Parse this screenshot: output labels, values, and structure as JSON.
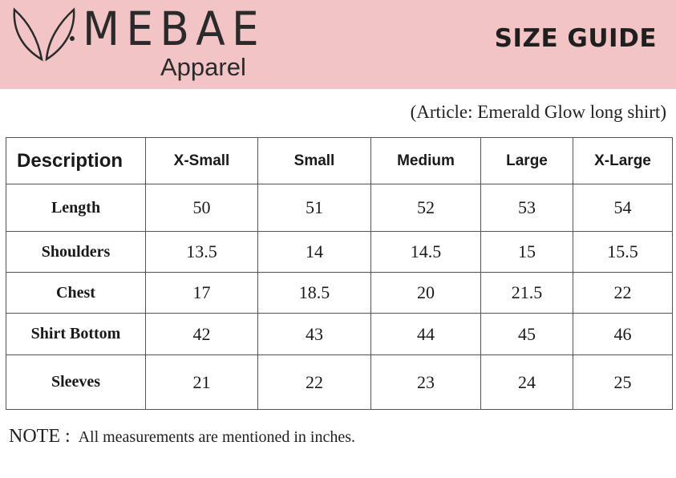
{
  "header": {
    "brand_name": "MEBAE",
    "brand_sub": "Apparel",
    "title": "SIZE GUIDE",
    "colors": {
      "banner": "#f2c4c6",
      "text": "#2a2a2a"
    }
  },
  "article": "(Article: Emerald Glow long shirt)",
  "table": {
    "columns": [
      "Description",
      "X-Small",
      "Small",
      "Medium",
      "Large",
      "X-Large"
    ],
    "rows": [
      {
        "label": "Length",
        "values": [
          "50",
          "51",
          "52",
          "53",
          "54"
        ]
      },
      {
        "label": "Shoulders",
        "values": [
          "13.5",
          "14",
          "14.5",
          "15",
          "15.5"
        ]
      },
      {
        "label": "Chest",
        "values": [
          "17",
          "18.5",
          "20",
          "21.5",
          "22"
        ]
      },
      {
        "label": "Shirt Bottom",
        "values": [
          "42",
          "43",
          "44",
          "45",
          "46"
        ]
      },
      {
        "label": "Sleeves",
        "values": [
          "21",
          "22",
          "23",
          "24",
          "25"
        ]
      }
    ]
  },
  "note": {
    "label": "NOTE :",
    "text": "All measurements are mentioned in inches."
  }
}
